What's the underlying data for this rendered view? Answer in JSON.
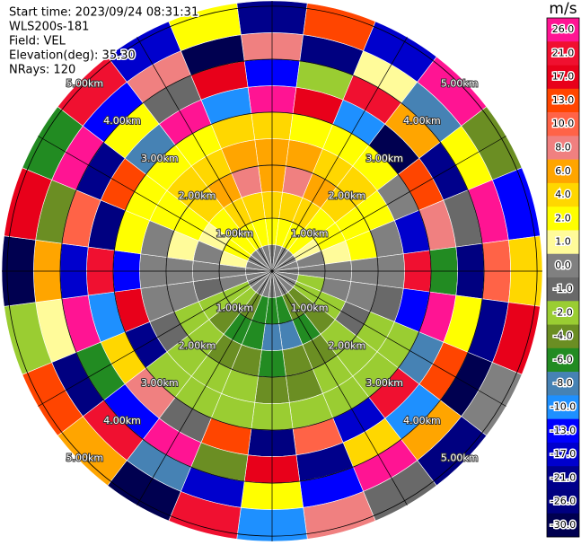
{
  "chart_data": {
    "type": "ppi",
    "start_time": "Start time: 2023/09/24 08:31:31",
    "instrument": "WLS200s-181",
    "field": "Field: VEL",
    "elevation": "Elevation(deg): 35.30",
    "nrays": "NRays: 120",
    "rlim": [
      0,
      5.1
    ],
    "rings": [
      {
        "value": 1,
        "label": "1.00km"
      },
      {
        "value": 2,
        "label": "2.00km"
      },
      {
        "value": 3,
        "label": "3.00km"
      },
      {
        "value": 4,
        "label": "4.00km"
      },
      {
        "value": 5,
        "label": "5.00km"
      }
    ],
    "azimuths": [
      0,
      15,
      30,
      45,
      60,
      75,
      90,
      105,
      120,
      135,
      150,
      165,
      180,
      195,
      210,
      225,
      240,
      255,
      270,
      285,
      300,
      315,
      330,
      345
    ],
    "ranges": [
      0,
      0.5,
      1,
      1.5,
      2,
      2.5,
      3,
      3.5,
      4,
      4.5
    ],
    "values": [
      [
        0,
        2,
        4,
        6,
        6,
        4,
        26,
        -13,
        8,
        -21
      ],
      [
        0,
        2,
        4,
        8,
        6,
        2,
        17,
        -2,
        -26,
        13
      ],
      [
        0,
        2,
        4,
        6,
        4,
        2,
        -10,
        21,
        1,
        -17
      ],
      [
        0,
        2,
        2,
        4,
        4,
        2,
        -30,
        6,
        -8,
        26
      ],
      [
        0,
        1,
        2,
        2,
        2,
        0,
        13,
        -21,
        2,
        -4
      ],
      [
        0,
        0,
        1,
        2,
        0,
        -17,
        8,
        -1,
        26,
        -13
      ],
      [
        0,
        0,
        0,
        0,
        0,
        21,
        -6,
        -26,
        10,
        4
      ],
      [
        0,
        -2,
        0,
        0,
        -1,
        -13,
        26,
        2,
        -21,
        17
      ],
      [
        0,
        -2,
        -2,
        -1,
        -2,
        -2,
        -8,
        13,
        -30,
        0
      ],
      [
        0,
        -4,
        -4,
        -2,
        -2,
        -2,
        21,
        -10,
        6,
        -26
      ],
      [
        0,
        -4,
        -6,
        -4,
        -2,
        -2,
        -17,
        4,
        26,
        -1
      ],
      [
        0,
        -6,
        -8,
        -4,
        -4,
        -2,
        10,
        -21,
        -13,
        8
      ],
      [
        0,
        -6,
        -8,
        -6,
        -4,
        -2,
        -26,
        17,
        2,
        -10
      ],
      [
        0,
        -6,
        -6,
        -4,
        -2,
        -2,
        13,
        -4,
        -17,
        21
      ],
      [
        0,
        -4,
        -6,
        -4,
        -2,
        -2,
        -1,
        26,
        -8,
        -30
      ],
      [
        0,
        -2,
        -4,
        -2,
        -2,
        -2,
        8,
        -13,
        21,
        6
      ],
      [
        0,
        -2,
        -2,
        -2,
        -1,
        -21,
        4,
        -6,
        -26,
        13
      ],
      [
        0,
        0,
        -1,
        0,
        0,
        17,
        -10,
        26,
        1,
        -2
      ],
      [
        0,
        0,
        0,
        0,
        0,
        -13,
        21,
        -17,
        6,
        -30
      ],
      [
        0,
        1,
        0,
        1,
        0,
        2,
        -26,
        10,
        -4,
        17
      ],
      [
        0,
        2,
        1,
        2,
        2,
        2,
        13,
        -21,
        26,
        -6
      ],
      [
        0,
        2,
        2,
        4,
        4,
        2,
        -8,
        2,
        -13,
        21
      ],
      [
        0,
        2,
        4,
        6,
        4,
        2,
        26,
        -1,
        8,
        -17
      ],
      [
        0,
        2,
        4,
        8,
        6,
        4,
        -10,
        17,
        -30,
        2
      ]
    ],
    "colorbar": {
      "title": "m/s",
      "ticks": [
        {
          "value": 26,
          "label": "26.0"
        },
        {
          "value": 21,
          "label": "21.0"
        },
        {
          "value": 17,
          "label": "17.0"
        },
        {
          "value": 13,
          "label": "13.0"
        },
        {
          "value": 10,
          "label": "10.0"
        },
        {
          "value": 8,
          "label": "8.0"
        },
        {
          "value": 6,
          "label": "6.0"
        },
        {
          "value": 4,
          "label": "4.0"
        },
        {
          "value": 2,
          "label": "2.0"
        },
        {
          "value": 1,
          "label": "1.0"
        },
        {
          "value": 0,
          "label": "0.0"
        },
        {
          "value": -1,
          "label": "-1.0"
        },
        {
          "value": -2,
          "label": "-2.0"
        },
        {
          "value": -4,
          "label": "-4.0"
        },
        {
          "value": -6,
          "label": "-6.0"
        },
        {
          "value": -8,
          "label": "-8.0"
        },
        {
          "value": -10,
          "label": "-10.0"
        },
        {
          "value": -13,
          "label": "-13.0"
        },
        {
          "value": -17,
          "label": "-17.0"
        },
        {
          "value": -21,
          "label": "-21.0"
        },
        {
          "value": -26,
          "label": "-26.0"
        },
        {
          "value": -30,
          "label": "-30.0"
        }
      ],
      "colors": [
        "#ff1493",
        "#f01030",
        "#e8001a",
        "#ff4500",
        "#ff6347",
        "#f08080",
        "#ffa500",
        "#ffd700",
        "#ffff00",
        "#fffb9a",
        "#808080",
        "#696969",
        "#9acd32",
        "#6b8e23",
        "#228b22",
        "#4682b4",
        "#1e90ff",
        "#0000ff",
        "#0000cd",
        "#00008b",
        "#000080",
        "#000050"
      ]
    }
  }
}
